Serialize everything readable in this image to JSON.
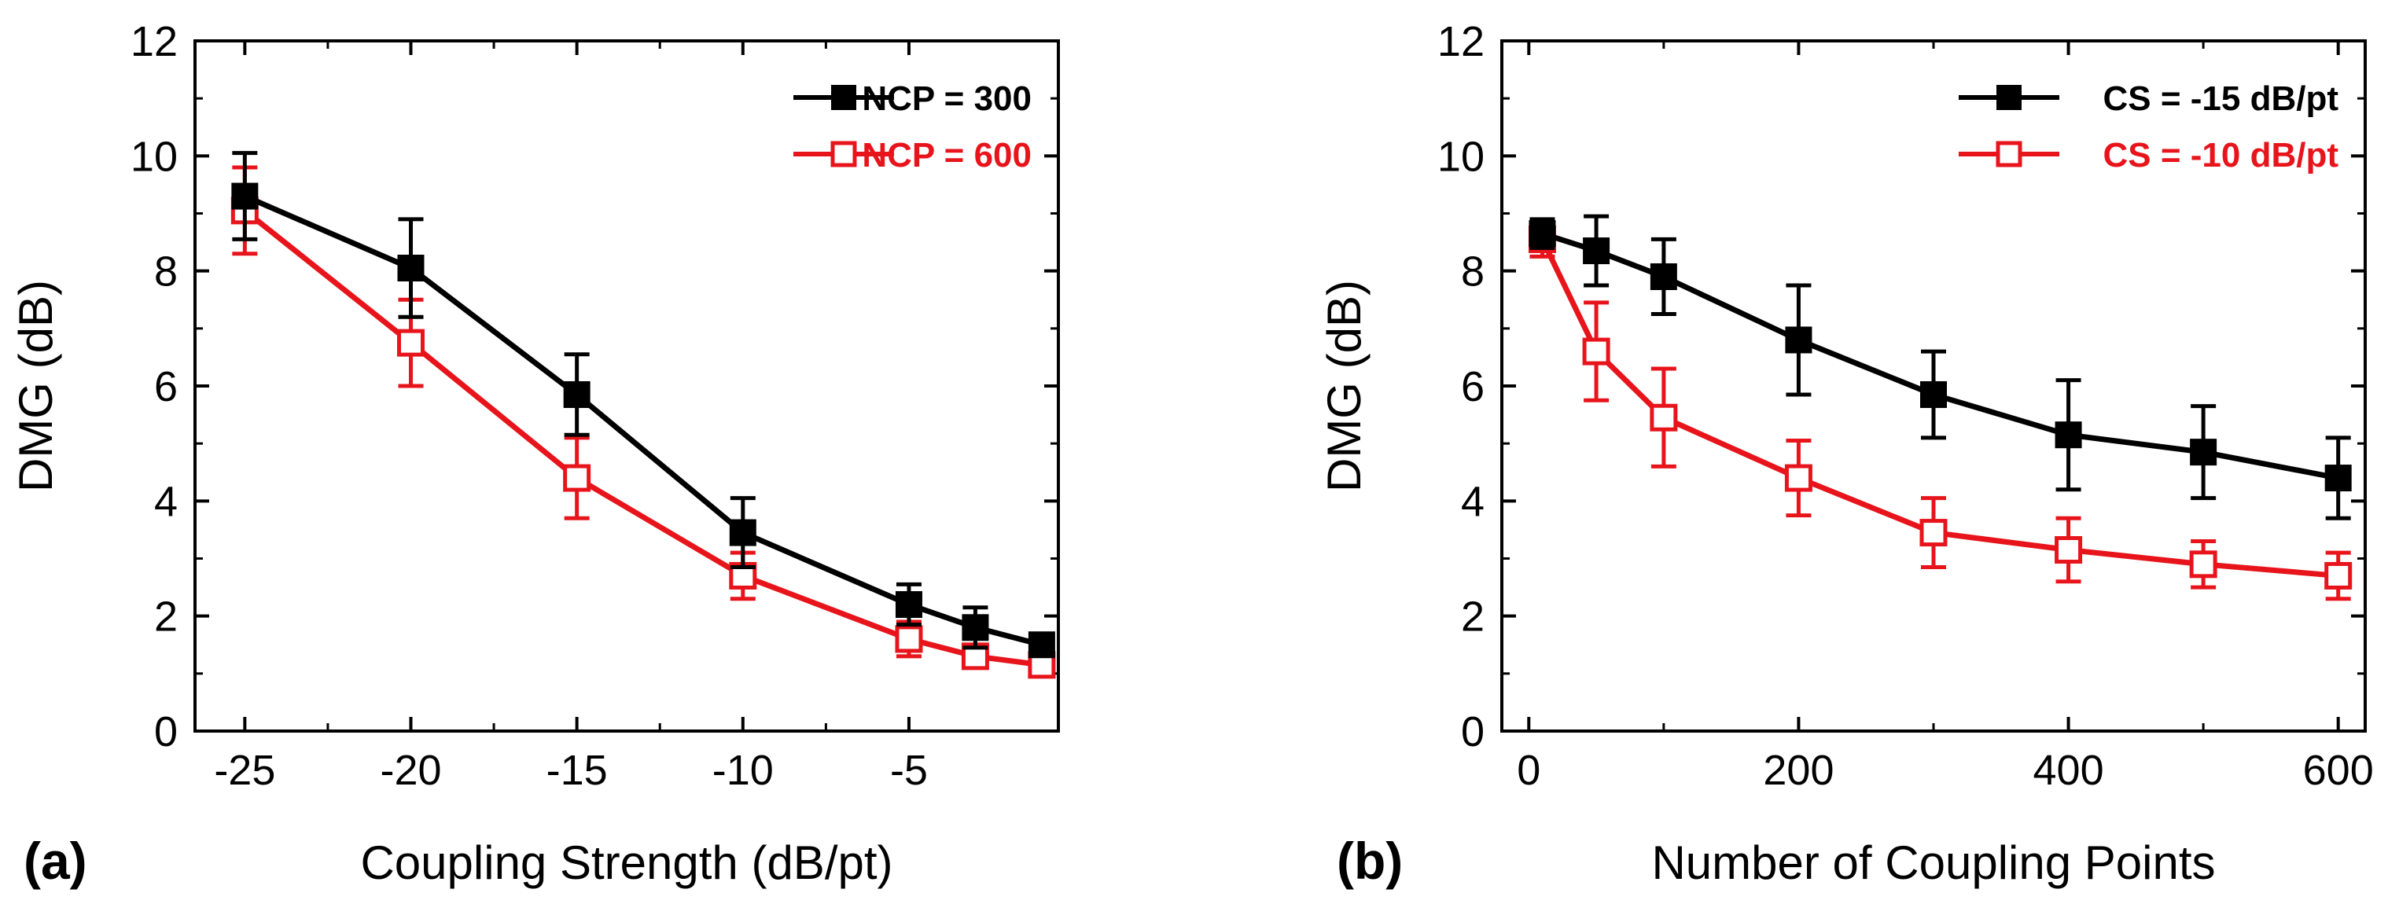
{
  "chart_data": [
    {
      "panel_label": "(a)",
      "type": "line",
      "xlabel": "Coupling Strength (dB/pt)",
      "ylabel": "DMG (dB)",
      "xlim": [
        -26.5,
        -0.5
      ],
      "ylim": [
        0,
        12
      ],
      "xticks": [
        -25,
        -20,
        -15,
        -10,
        -5
      ],
      "yticks": [
        0,
        2,
        4,
        6,
        8,
        10,
        12
      ],
      "legend_position": "top-right",
      "series": [
        {
          "name": "NCP = 300",
          "color": "#000000",
          "marker": "filled-square",
          "x": [
            -25,
            -20,
            -15,
            -10,
            -5,
            -3,
            -1
          ],
          "y": [
            9.3,
            8.05,
            5.85,
            3.45,
            2.2,
            1.8,
            1.5
          ],
          "err": [
            0.75,
            0.85,
            0.7,
            0.6,
            0.35,
            0.35,
            0.15
          ]
        },
        {
          "name": "NCP = 600",
          "color": "#e8141b",
          "marker": "open-square",
          "x": [
            -25,
            -20,
            -15,
            -10,
            -5,
            -3,
            -1
          ],
          "y": [
            9.05,
            6.75,
            4.4,
            2.7,
            1.6,
            1.3,
            1.15
          ],
          "err": [
            0.75,
            0.75,
            0.7,
            0.4,
            0.3,
            0.2,
            0.15
          ]
        }
      ]
    },
    {
      "panel_label": "(b)",
      "type": "line",
      "xlabel": "Number of Coupling Points",
      "ylabel": "DMG (dB)",
      "xlim": [
        -20,
        620
      ],
      "ylim": [
        0,
        12
      ],
      "xticks": [
        0,
        200,
        400,
        600
      ],
      "yticks": [
        0,
        2,
        4,
        6,
        8,
        10,
        12
      ],
      "legend_position": "top-right",
      "series": [
        {
          "name": "CS = -15 dB/pt",
          "color": "#000000",
          "marker": "filled-square",
          "x": [
            10,
            50,
            100,
            200,
            300,
            400,
            500,
            600
          ],
          "y": [
            8.65,
            8.35,
            7.9,
            6.8,
            5.85,
            5.15,
            4.85,
            4.4
          ],
          "err": [
            0.25,
            0.6,
            0.65,
            0.95,
            0.75,
            0.95,
            0.8,
            0.7
          ]
        },
        {
          "name": "CS = -10 dB/pt",
          "color": "#e8141b",
          "marker": "open-square",
          "x": [
            10,
            50,
            100,
            200,
            300,
            400,
            500,
            600
          ],
          "y": [
            8.55,
            6.6,
            5.45,
            4.4,
            3.45,
            3.15,
            2.9,
            2.7
          ],
          "err": [
            0.3,
            0.85,
            0.85,
            0.65,
            0.6,
            0.55,
            0.4,
            0.4
          ]
        }
      ]
    }
  ]
}
